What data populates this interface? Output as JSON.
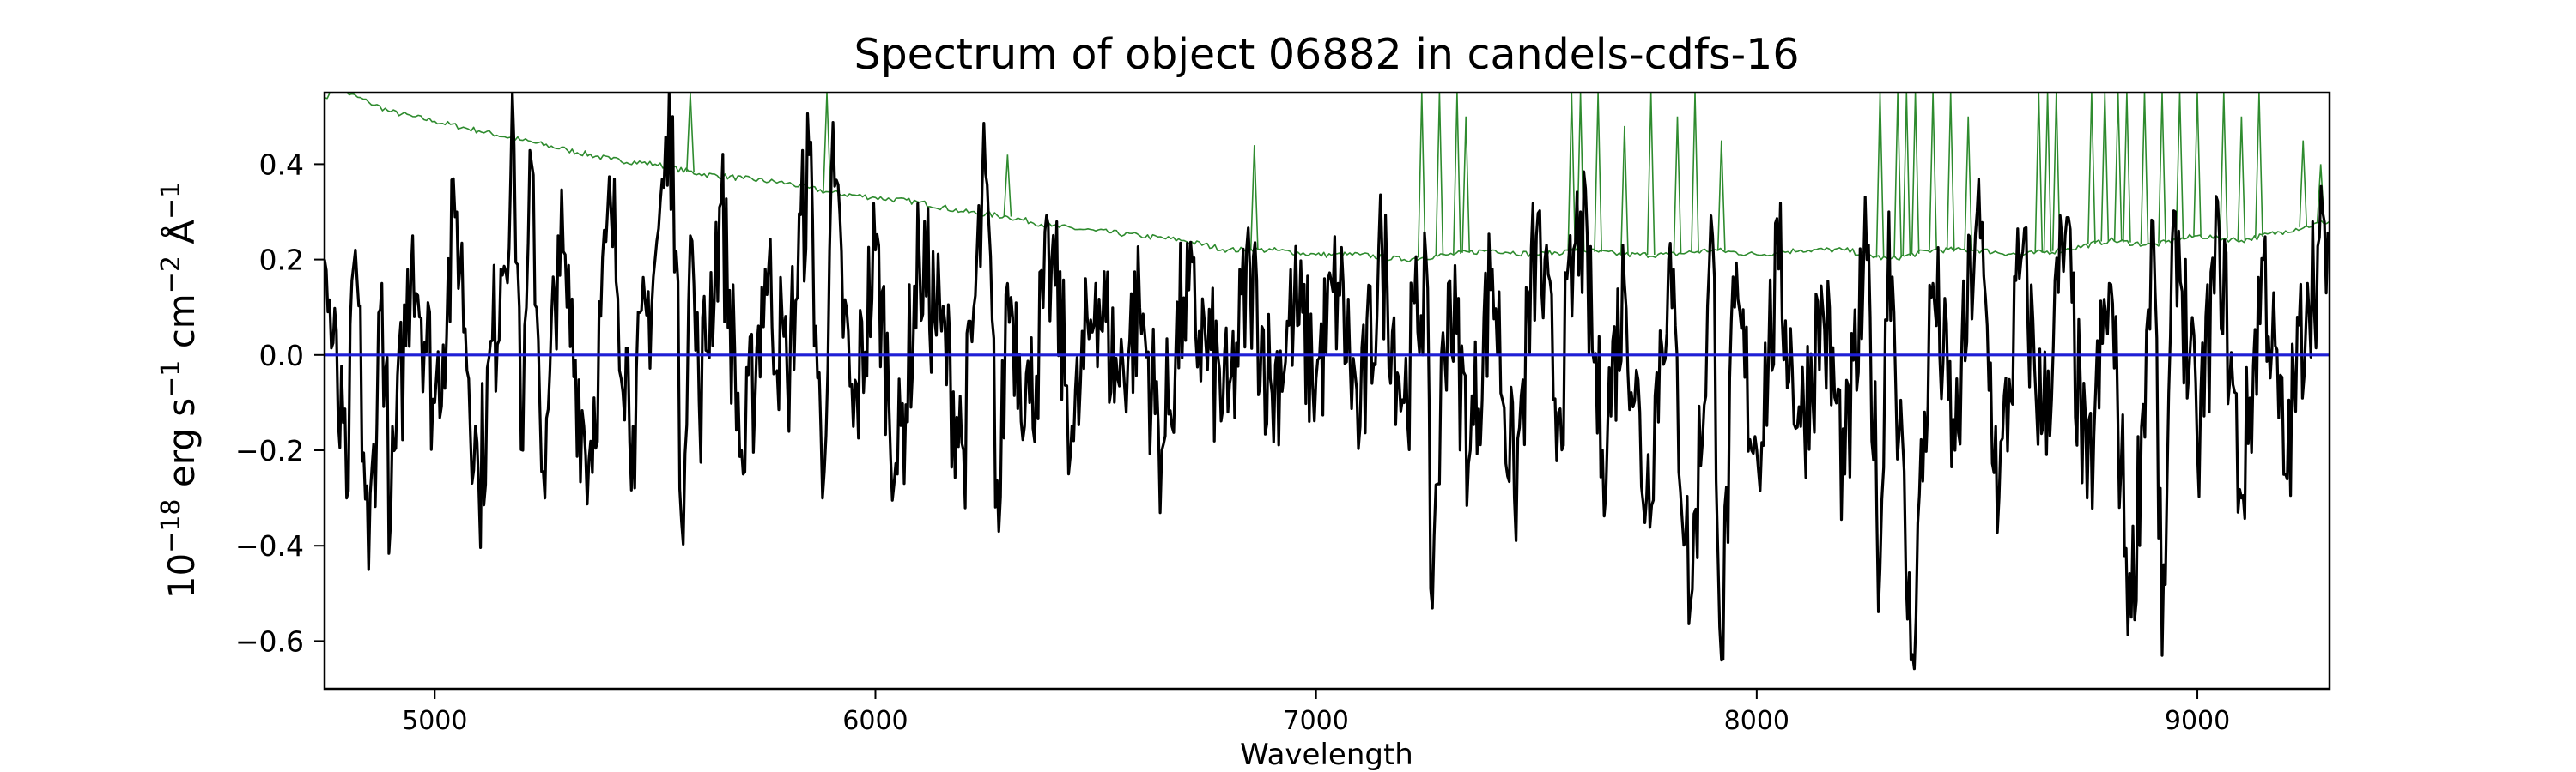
{
  "chart_data": {
    "type": "line",
    "title": "Spectrum of object 06882 in candels-cdfs-16",
    "xlabel": "Wavelength",
    "ylabel": {
      "parts": [
        {
          "t": "10",
          "sup": false
        },
        {
          "t": "−18",
          "sup": true
        },
        {
          "t": " erg s",
          "sup": false
        },
        {
          "t": "−1",
          "sup": true
        },
        {
          "t": " cm",
          "sup": false
        },
        {
          "t": "−2",
          "sup": true
        },
        {
          "t": " Å",
          "sup": false
        },
        {
          "t": "−1",
          "sup": true
        }
      ]
    },
    "xlim": [
      4750,
      9300
    ],
    "ylim": [
      -0.7,
      0.55
    ],
    "xticks": [
      5000,
      6000,
      7000,
      8000,
      9000
    ],
    "xtick_labels": [
      "5000",
      "6000",
      "7000",
      "8000",
      "9000"
    ],
    "yticks": [
      0.4,
      0.2,
      0.0,
      -0.2,
      -0.4,
      -0.6
    ],
    "ytick_labels": [
      "0.4",
      "0.2",
      "0.0",
      "−0.2",
      "−0.4",
      "−0.6"
    ],
    "grid": false,
    "legend": "none",
    "colors": {
      "flux": "#000000",
      "error": "#2e8b2e",
      "model": "#1f1fd6"
    },
    "series": [
      {
        "role": "error",
        "x": [
          4750,
          4780,
          4800,
          4850,
          4900,
          4950,
          5000,
          5100,
          5200,
          5300,
          5400,
          5500,
          5600,
          5700,
          5800,
          5850,
          5900,
          6000,
          6100,
          6200,
          6300,
          6400,
          6500,
          6600,
          6700,
          6800,
          6900,
          7000,
          7100,
          7200,
          7300,
          7400,
          7500,
          7600,
          7700,
          7800,
          7900,
          8000,
          8100,
          8200,
          8300,
          8400,
          8500,
          8600,
          8700,
          8800,
          8900,
          9000,
          9100,
          9200,
          9300
        ],
        "y": [
          0.54,
          0.56,
          0.55,
          0.53,
          0.51,
          0.5,
          0.49,
          0.47,
          0.45,
          0.43,
          0.41,
          0.4,
          0.38,
          0.37,
          0.36,
          0.35,
          0.34,
          0.33,
          0.32,
          0.3,
          0.29,
          0.27,
          0.26,
          0.25,
          0.24,
          0.22,
          0.22,
          0.21,
          0.21,
          0.2,
          0.21,
          0.22,
          0.21,
          0.22,
          0.21,
          0.21,
          0.22,
          0.21,
          0.22,
          0.22,
          0.2,
          0.22,
          0.22,
          0.21,
          0.22,
          0.24,
          0.23,
          0.25,
          0.24,
          0.26,
          0.28
        ],
        "spikes": [
          [
            5580,
            0.58
          ],
          [
            5890,
            0.58
          ],
          [
            6300,
            0.42
          ],
          [
            6860,
            0.44
          ],
          [
            7240,
            0.58
          ],
          [
            7280,
            0.58
          ],
          [
            7320,
            0.58
          ],
          [
            7340,
            0.5
          ],
          [
            7580,
            0.58
          ],
          [
            7600,
            0.58
          ],
          [
            7640,
            0.58
          ],
          [
            7700,
            0.48
          ],
          [
            7760,
            0.58
          ],
          [
            7820,
            0.5
          ],
          [
            7860,
            0.58
          ],
          [
            7920,
            0.45
          ],
          [
            8280,
            0.58
          ],
          [
            8320,
            0.58
          ],
          [
            8340,
            0.58
          ],
          [
            8360,
            0.58
          ],
          [
            8400,
            0.58
          ],
          [
            8440,
            0.58
          ],
          [
            8480,
            0.5
          ],
          [
            8640,
            0.58
          ],
          [
            8660,
            0.58
          ],
          [
            8680,
            0.58
          ],
          [
            8760,
            0.58
          ],
          [
            8790,
            0.58
          ],
          [
            8820,
            0.58
          ],
          [
            8840,
            0.58
          ],
          [
            8880,
            0.58
          ],
          [
            8920,
            0.58
          ],
          [
            8960,
            0.58
          ],
          [
            9000,
            0.58
          ],
          [
            9060,
            0.58
          ],
          [
            9100,
            0.5
          ],
          [
            9140,
            0.58
          ],
          [
            9240,
            0.45
          ],
          [
            9280,
            0.4
          ]
        ]
      },
      {
        "role": "flux",
        "x": [
          4750,
          4800,
          4820,
          4850,
          4880,
          4900,
          4950,
          5000,
          5050,
          5100,
          5150,
          5180,
          5200,
          5220,
          5250,
          5280,
          5300,
          5350,
          5400,
          5450,
          5500,
          5540,
          5560,
          5580,
          5600,
          5650,
          5700,
          5750,
          5800,
          5850,
          5880,
          5900,
          5950,
          6000,
          6050,
          6100,
          6150,
          6200,
          6250,
          6280,
          6300,
          6350,
          6400,
          6450,
          6500,
          6550,
          6600,
          6650,
          6700,
          6750,
          6800,
          6850,
          6900,
          6950,
          7000,
          7050,
          7100,
          7150,
          7200,
          7250,
          7260,
          7300,
          7350,
          7400,
          7450,
          7500,
          7550,
          7600,
          7650,
          7700,
          7750,
          7800,
          7850,
          7900,
          7920,
          7950,
          8000,
          8050,
          8100,
          8150,
          8200,
          8250,
          8280,
          8300,
          8350,
          8400,
          8450,
          8500,
          8550,
          8600,
          8650,
          8700,
          8750,
          8800,
          8850,
          8900,
          8920,
          8950,
          9000,
          9050,
          9100,
          9150,
          9200,
          9250,
          9300
        ],
        "y": [
          0.2,
          -0.3,
          0.22,
          -0.45,
          0.15,
          -0.35,
          0.25,
          -0.1,
          0.3,
          -0.28,
          0.18,
          0.44,
          -0.2,
          0.4,
          -0.3,
          0.25,
          0.1,
          -0.22,
          0.3,
          -0.15,
          0.2,
          0.5,
          -0.35,
          0.25,
          -0.1,
          0.32,
          -0.25,
          0.18,
          -0.05,
          0.42,
          -0.3,
          0.38,
          -0.15,
          0.22,
          -0.25,
          0.2,
          0.05,
          -0.2,
          0.38,
          -0.37,
          0.15,
          -0.1,
          0.2,
          -0.18,
          0.15,
          -0.05,
          0.1,
          -0.2,
          0.12,
          0.02,
          -0.12,
          0.18,
          -0.08,
          0.1,
          -0.05,
          0.15,
          -0.15,
          0.22,
          -0.1,
          0.2,
          -0.49,
          0.15,
          -0.2,
          0.18,
          -0.3,
          0.25,
          -0.12,
          0.3,
          -0.2,
          0.15,
          -0.3,
          0.2,
          -0.52,
          0.25,
          -0.64,
          0.1,
          -0.2,
          0.18,
          -0.15,
          0.1,
          -0.25,
          0.2,
          -0.45,
          0.3,
          -0.64,
          0.15,
          -0.2,
          0.3,
          -0.3,
          0.2,
          -0.15,
          0.25,
          -0.3,
          0.15,
          -0.55,
          0.28,
          -0.63,
          0.3,
          -0.2,
          0.25,
          -0.3,
          0.2,
          -0.25,
          0.15,
          0.24
        ]
      },
      {
        "role": "model",
        "x": [
          4750,
          9300
        ],
        "y": [
          0.0,
          0.0
        ]
      }
    ]
  }
}
